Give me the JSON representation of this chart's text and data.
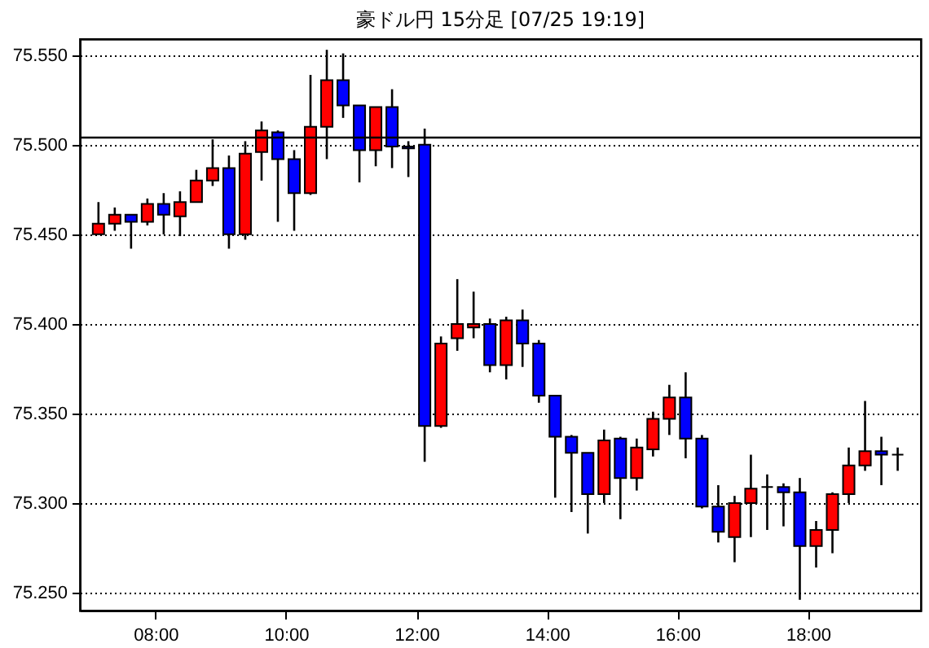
{
  "chart_data": {
    "type": "candlestick",
    "title": "豪ドル円 15分足 [07/25 19:19]",
    "x": [
      7.125,
      7.375,
      7.625,
      7.875,
      8.125,
      8.375,
      8.625,
      8.875,
      9.125,
      9.375,
      9.625,
      9.875,
      10.125,
      10.375,
      10.625,
      10.875,
      11.125,
      11.375,
      11.625,
      11.875,
      12.125,
      12.375,
      12.625,
      12.875,
      13.125,
      13.375,
      13.625,
      13.875,
      14.125,
      14.375,
      14.625,
      14.875,
      15.125,
      15.375,
      15.625,
      15.875,
      16.125,
      16.375,
      16.625,
      16.875,
      17.125,
      17.375,
      17.625,
      17.875,
      18.125,
      18.375,
      18.625,
      18.875,
      19.125,
      19.375
    ],
    "ohlc": [
      [
        75.45,
        75.468,
        75.45,
        75.456
      ],
      [
        75.456,
        75.465,
        75.452,
        75.461
      ],
      [
        75.461,
        75.461,
        75.442,
        75.457
      ],
      [
        75.457,
        75.47,
        75.455,
        75.467
      ],
      [
        75.467,
        75.473,
        75.45,
        75.461
      ],
      [
        75.46,
        75.474,
        75.449,
        75.468
      ],
      [
        75.468,
        75.486,
        75.468,
        75.48
      ],
      [
        75.48,
        75.503,
        75.477,
        75.487
      ],
      [
        75.487,
        75.494,
        75.442,
        75.45
      ],
      [
        75.45,
        75.502,
        75.447,
        75.495
      ],
      [
        75.496,
        75.513,
        75.48,
        75.508
      ],
      [
        75.507,
        75.508,
        75.457,
        75.492
      ],
      [
        75.492,
        75.497,
        75.452,
        75.473
      ],
      [
        75.473,
        75.539,
        75.472,
        75.51
      ],
      [
        75.51,
        75.553,
        75.492,
        75.536
      ],
      [
        75.536,
        75.551,
        75.515,
        75.522
      ],
      [
        75.522,
        75.522,
        75.479,
        75.497
      ],
      [
        75.497,
        75.521,
        75.488,
        75.521
      ],
      [
        75.521,
        75.531,
        75.487,
        75.499
      ],
      [
        75.499,
        75.502,
        75.482,
        75.498
      ],
      [
        75.5,
        75.509,
        75.323,
        75.343
      ],
      [
        75.343,
        75.393,
        75.342,
        75.389
      ],
      [
        75.392,
        75.425,
        75.385,
        75.4
      ],
      [
        75.398,
        75.418,
        75.392,
        75.4
      ],
      [
        75.4,
        75.403,
        75.373,
        75.377
      ],
      [
        75.377,
        75.404,
        75.369,
        75.402
      ],
      [
        75.402,
        75.408,
        75.376,
        75.389
      ],
      [
        75.389,
        75.391,
        75.356,
        75.36
      ],
      [
        75.36,
        75.36,
        75.303,
        75.337
      ],
      [
        75.337,
        75.338,
        75.295,
        75.328
      ],
      [
        75.328,
        75.328,
        75.283,
        75.305
      ],
      [
        75.305,
        75.341,
        75.3,
        75.335
      ],
      [
        75.336,
        75.337,
        75.291,
        75.314
      ],
      [
        75.314,
        75.336,
        75.307,
        75.331
      ],
      [
        75.33,
        75.351,
        75.326,
        75.347
      ],
      [
        75.347,
        75.366,
        75.338,
        75.359
      ],
      [
        75.359,
        75.373,
        75.325,
        75.336
      ],
      [
        75.336,
        75.338,
        75.297,
        75.298
      ],
      [
        75.298,
        75.31,
        75.278,
        75.284
      ],
      [
        75.281,
        75.304,
        75.267,
        75.3
      ],
      [
        75.3,
        75.327,
        75.281,
        75.308
      ],
      [
        75.309,
        75.316,
        75.285,
        75.309
      ],
      [
        75.309,
        75.311,
        75.287,
        75.306
      ],
      [
        75.306,
        75.314,
        75.246,
        75.276
      ],
      [
        75.276,
        75.29,
        75.264,
        75.285
      ],
      [
        75.285,
        75.306,
        75.272,
        75.305
      ],
      [
        75.305,
        75.331,
        75.3,
        75.321
      ],
      [
        75.321,
        75.357,
        75.318,
        75.329
      ],
      [
        75.329,
        75.337,
        75.31,
        75.327
      ],
      [
        75.327,
        75.331,
        75.318,
        75.327
      ]
    ],
    "colors": [
      "#ff0000",
      "#ff0000",
      "#0000ff",
      "#ff0000",
      "#0000ff",
      "#ff0000",
      "#ff0000",
      "#ff0000",
      "#0000ff",
      "#ff0000",
      "#ff0000",
      "#0000ff",
      "#0000ff",
      "#ff0000",
      "#ff0000",
      "#0000ff",
      "#0000ff",
      "#ff0000",
      "#0000ff",
      "#0000ff",
      "#0000ff",
      "#ff0000",
      "#ff0000",
      "#ff0000",
      "#0000ff",
      "#ff0000",
      "#0000ff",
      "#0000ff",
      "#0000ff",
      "#0000ff",
      "#0000ff",
      "#ff0000",
      "#0000ff",
      "#ff0000",
      "#ff0000",
      "#ff0000",
      "#0000ff",
      "#0000ff",
      "#0000ff",
      "#ff0000",
      "#ff0000",
      "#000000",
      "#0000ff",
      "#0000ff",
      "#ff0000",
      "#ff0000",
      "#ff0000",
      "#ff0000",
      "#0000ff",
      "#000000"
    ],
    "xlim": [
      6.84,
      19.73
    ],
    "xticks": [
      {
        "value": 8,
        "label": "08:00"
      },
      {
        "value": 10,
        "label": "10:00"
      },
      {
        "value": 12,
        "label": "12:00"
      },
      {
        "value": 14,
        "label": "14:00"
      },
      {
        "value": 16,
        "label": "16:00"
      },
      {
        "value": 18,
        "label": "18:00"
      }
    ],
    "ylim": [
      75.24,
      75.559
    ],
    "yticks": [
      {
        "value": 75.25,
        "label": "75.250"
      },
      {
        "value": 75.3,
        "label": "75.300"
      },
      {
        "value": 75.35,
        "label": "75.350"
      },
      {
        "value": 75.4,
        "label": "75.400"
      },
      {
        "value": 75.45,
        "label": "75.450"
      },
      {
        "value": 75.5,
        "label": "75.500"
      },
      {
        "value": 75.55,
        "label": "75.550"
      }
    ],
    "grid": "y",
    "ref_lines": [
      {
        "axis": "y",
        "value": 75.504,
        "color": "#000000"
      }
    ]
  }
}
